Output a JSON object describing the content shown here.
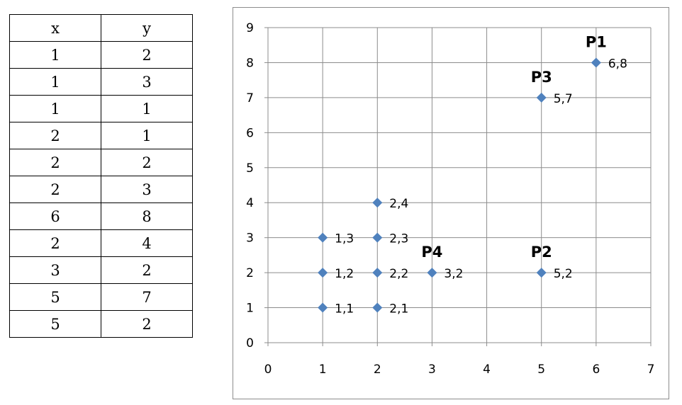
{
  "table": {
    "headers": [
      "x",
      "y"
    ],
    "rows": [
      [
        "1",
        "2"
      ],
      [
        "1",
        "3"
      ],
      [
        "1",
        "1"
      ],
      [
        "2",
        "1"
      ],
      [
        "2",
        "2"
      ],
      [
        "2",
        "3"
      ],
      [
        "6",
        "8"
      ],
      [
        "2",
        "4"
      ],
      [
        "3",
        "2"
      ],
      [
        "5",
        "7"
      ],
      [
        "5",
        "2"
      ]
    ]
  },
  "chart_data": {
    "type": "scatter",
    "title": "",
    "xlabel": "",
    "ylabel": "",
    "xlim": [
      0,
      7
    ],
    "ylim": [
      0,
      9
    ],
    "x_ticks": [
      "0",
      "1",
      "2",
      "3",
      "4",
      "5",
      "6",
      "7"
    ],
    "y_ticks": [
      "0",
      "1",
      "2",
      "3",
      "4",
      "5",
      "6",
      "7",
      "8",
      "9"
    ],
    "grid": true,
    "legend": "none",
    "marker": "diamond",
    "marker_color": "#4f81bd",
    "points": [
      {
        "x": 1,
        "y": 2,
        "label": "1,2"
      },
      {
        "x": 1,
        "y": 3,
        "label": "1,3"
      },
      {
        "x": 1,
        "y": 1,
        "label": "1,1"
      },
      {
        "x": 2,
        "y": 1,
        "label": "2,1"
      },
      {
        "x": 2,
        "y": 2,
        "label": "2,2"
      },
      {
        "x": 2,
        "y": 3,
        "label": "2,3"
      },
      {
        "x": 6,
        "y": 8,
        "label": "6,8"
      },
      {
        "x": 2,
        "y": 4,
        "label": "2,4"
      },
      {
        "x": 3,
        "y": 2,
        "label": "3,2"
      },
      {
        "x": 5,
        "y": 7,
        "label": "5,7"
      },
      {
        "x": 5,
        "y": 2,
        "label": "5,2"
      }
    ],
    "annotations": [
      {
        "text": "P1",
        "x": 6,
        "y": 8
      },
      {
        "text": "P3",
        "x": 5,
        "y": 7
      },
      {
        "text": "P2",
        "x": 5,
        "y": 2
      },
      {
        "text": "P4",
        "x": 3,
        "y": 2
      }
    ]
  }
}
